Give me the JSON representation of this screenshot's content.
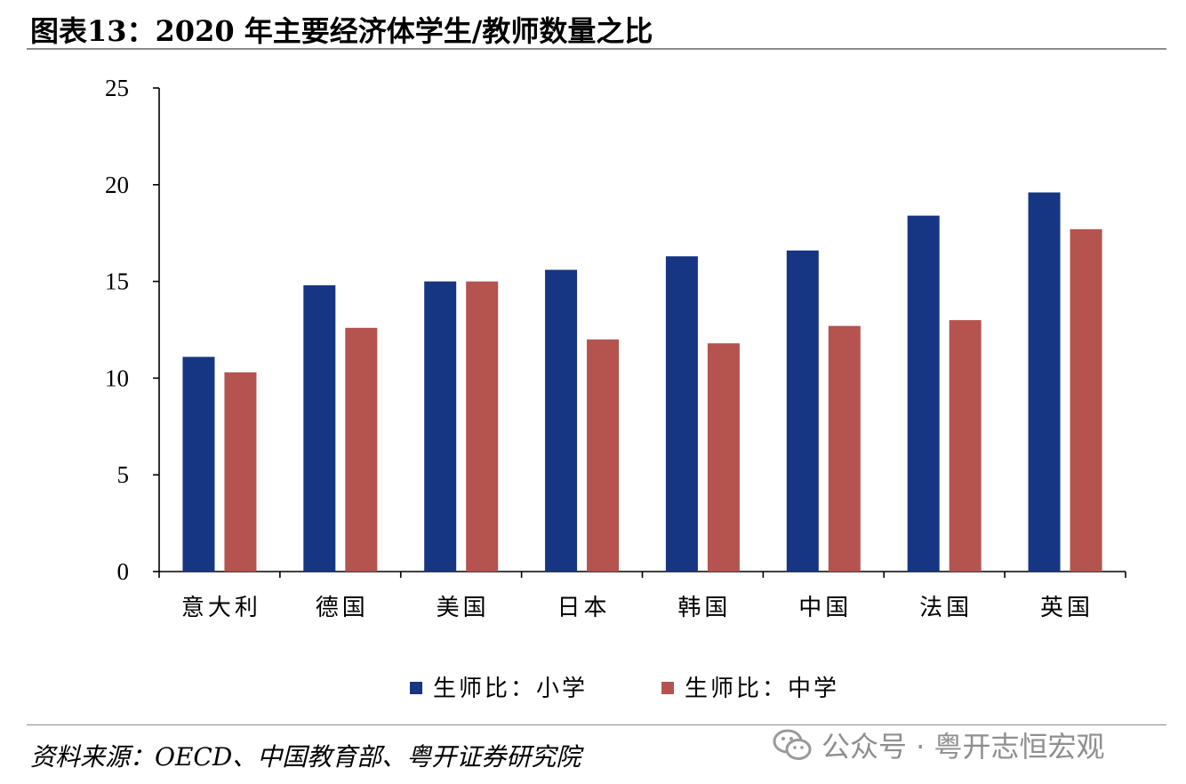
{
  "header": {
    "title": "图表13：2020 年主要经济体学生/教师数量之比"
  },
  "footer": {
    "source": "资料来源：OECD、中国教育部、粤开证券研究院"
  },
  "watermark": {
    "text": "公众号 · 粤开志恒宏观",
    "icon": "wechat-icon"
  },
  "colors": {
    "primary": "#163683",
    "secondary": "#b5534f",
    "axis": "#000000"
  },
  "chart_data": {
    "type": "bar",
    "title": "",
    "xlabel": "",
    "ylabel": "",
    "ylim": [
      0,
      25
    ],
    "yticks": [
      "0",
      "5",
      "10",
      "15",
      "20",
      "25"
    ],
    "grid": false,
    "legend_position": "bottom",
    "categories": [
      "意大利",
      "德国",
      "美国",
      "日本",
      "韩国",
      "中国",
      "法国",
      "英国"
    ],
    "series": [
      {
        "name": "生师比：小学",
        "color": "#163683",
        "values": [
          11.1,
          14.8,
          15.0,
          15.6,
          16.3,
          16.6,
          18.4,
          19.6
        ]
      },
      {
        "name": "生师比：中学",
        "color": "#b5534f",
        "values": [
          10.3,
          12.6,
          15.0,
          12.0,
          11.8,
          12.7,
          13.0,
          17.7
        ]
      }
    ]
  }
}
